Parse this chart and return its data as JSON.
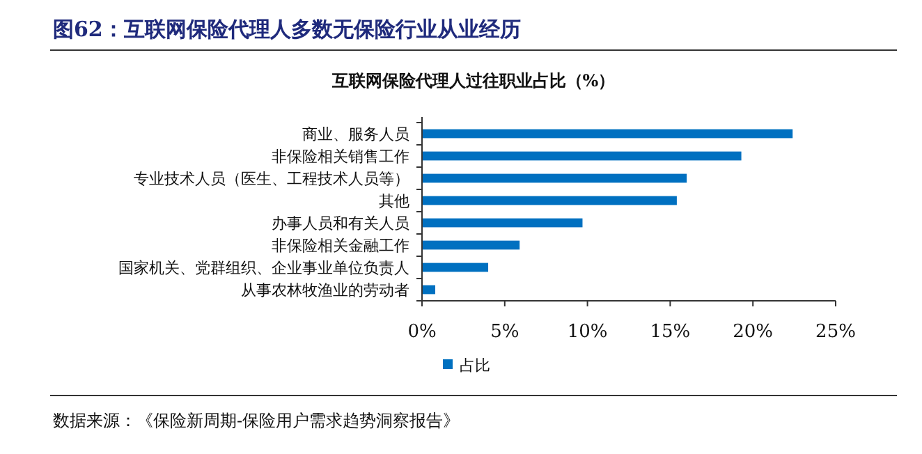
{
  "chart_data": {
    "type": "bar",
    "orientation": "horizontal",
    "title": "图62：互联网保险代理人多数无保险行业从业经历",
    "subtitle": "互联网保险代理人过往职业占比（%）",
    "categories": [
      "商业、服务人员",
      "非保险相关销售工作",
      "专业技术人员（医生、工程技术人员等）",
      "其他",
      "办事人员和有关人员",
      "非保险相关金融工作",
      "国家机关、党群组织、企业事业单位负责人",
      "从事农林牧渔业的劳动者"
    ],
    "series": [
      {
        "name": "占比",
        "color": "#0070c0",
        "values": [
          22.4,
          19.3,
          16.0,
          15.4,
          9.7,
          5.9,
          4.0,
          0.8
        ]
      }
    ],
    "xlim": [
      0,
      25
    ],
    "xticks": [
      {
        "value": 0,
        "label": "0%"
      },
      {
        "value": 5,
        "label": "5%"
      },
      {
        "value": 10,
        "label": "10%"
      },
      {
        "value": 15,
        "label": "15%"
      },
      {
        "value": 20,
        "label": "20%"
      },
      {
        "value": 25,
        "label": "25%"
      }
    ],
    "legend": "bottom",
    "grid": false,
    "annotations": [
      "数据来源：《保险新周期-保险用户需求趋势洞察报告》"
    ]
  }
}
